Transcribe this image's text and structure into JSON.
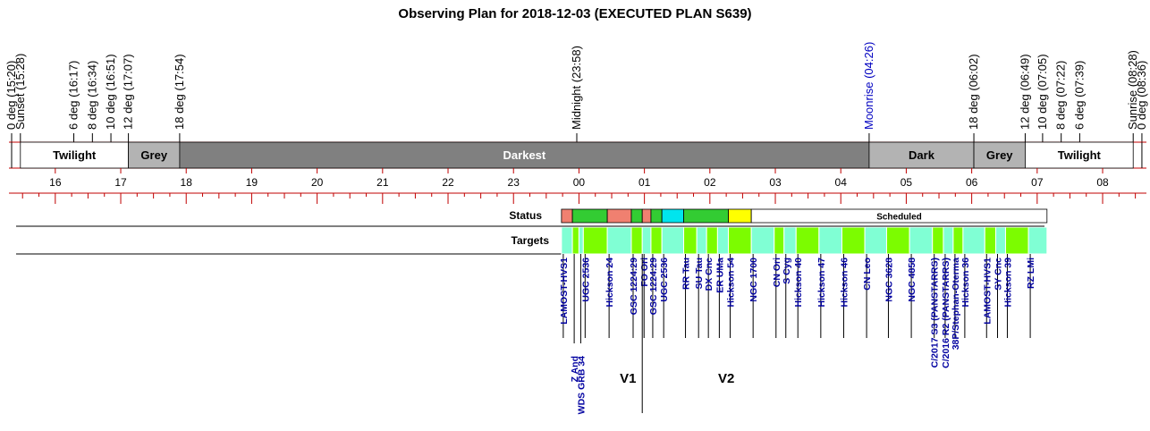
{
  "title": "Observing Plan for 2018-12-03 (EXECUTED PLAN S639)",
  "colors": {
    "red_line": "#c00000",
    "grey_band": "#b3b3b3",
    "darkest_band": "#808080",
    "status_red": "#f08070",
    "status_green": "#33cc33",
    "status_cyan": "#00e5ee",
    "status_yellow": "#ffff00",
    "target_aqua": "#80ffd4",
    "target_lime": "#7cfc00",
    "label_blue": "#0000a0",
    "moonrise_blue": "#0000c0"
  },
  "events": [
    {
      "label": "0 deg (15:20)",
      "time": 15.333
    },
    {
      "label": "Sunset (15:28)",
      "time": 15.467
    },
    {
      "label": "6 deg (16:17)",
      "time": 16.283
    },
    {
      "label": "8 deg (16:34)",
      "time": 16.567
    },
    {
      "label": "10 deg (16:51)",
      "time": 16.85
    },
    {
      "label": "12 deg (17:07)",
      "time": 17.117
    },
    {
      "label": "18 deg (17:54)",
      "time": 17.9
    },
    {
      "label": "Midnight (23:58)",
      "time": 23.967
    },
    {
      "label": "Moonrise (04:26)",
      "time": 28.433,
      "moon": true
    },
    {
      "label": "18 deg (06:02)",
      "time": 30.033
    },
    {
      "label": "12 deg (06:49)",
      "time": 30.817
    },
    {
      "label": "10 deg (07:05)",
      "time": 31.083
    },
    {
      "label": "8 deg (07:22)",
      "time": 31.367
    },
    {
      "label": "6 deg (07:39)",
      "time": 31.65
    },
    {
      "label": "Sunrise (08:28)",
      "time": 32.467
    },
    {
      "label": "0 deg (08:36)",
      "time": 32.6
    }
  ],
  "bands": [
    {
      "label": "Twilight",
      "start": 15.467,
      "end": 17.117,
      "shade": "white"
    },
    {
      "label": "Grey",
      "start": 17.117,
      "end": 17.9,
      "shade": "grey"
    },
    {
      "label": "Darkest",
      "start": 17.9,
      "end": 28.433,
      "shade": "darkest"
    },
    {
      "label": "Dark",
      "start": 28.433,
      "end": 30.033,
      "shade": "grey"
    },
    {
      "label": "Grey",
      "start": 30.033,
      "end": 30.817,
      "shade": "grey"
    },
    {
      "label": "Twilight",
      "start": 30.817,
      "end": 32.467,
      "shade": "white"
    }
  ],
  "hour_ticks": [
    "16",
    "17",
    "18",
    "19",
    "20",
    "21",
    "22",
    "23",
    "00",
    "01",
    "02",
    "03",
    "04",
    "05",
    "06",
    "07",
    "08"
  ],
  "row_labels": {
    "status": "Status",
    "targets": "Targets"
  },
  "status_blocks": [
    {
      "start": 23.733,
      "end": 23.9,
      "color": "red"
    },
    {
      "start": 23.9,
      "end": 24.433,
      "color": "green"
    },
    {
      "start": 24.433,
      "end": 24.8,
      "color": "red"
    },
    {
      "start": 24.8,
      "end": 24.967,
      "color": "green"
    },
    {
      "start": 24.967,
      "end": 25.1,
      "color": "red"
    },
    {
      "start": 25.1,
      "end": 25.267,
      "color": "green"
    },
    {
      "start": 25.267,
      "end": 25.6,
      "color": "cyan"
    },
    {
      "start": 25.6,
      "end": 26.283,
      "color": "green"
    },
    {
      "start": 26.283,
      "end": 26.633,
      "color": "yellow"
    },
    {
      "start": 26.633,
      "end": 31.15,
      "color": "white",
      "label": "Scheduled"
    }
  ],
  "targets": [
    {
      "name": "LAMOST-HVS1",
      "start": 23.733,
      "end": 23.9,
      "color": "aqua"
    },
    {
      "name": "Z And",
      "start": 23.9,
      "end": 24.0,
      "color": "lime"
    },
    {
      "name": "WDS GRB 34",
      "start": 24.0,
      "end": 24.067,
      "color": "aqua"
    },
    {
      "name": "UGC 2536",
      "start": 24.067,
      "end": 24.433,
      "color": "lime"
    },
    {
      "name": "Hickson 24",
      "start": 24.433,
      "end": 24.8,
      "color": "aqua"
    },
    {
      "name": "GSC 1224:29",
      "start": 24.8,
      "end": 24.967,
      "color": "lime"
    },
    {
      "name": "FO Ori",
      "start": 24.967,
      "end": 25.1,
      "color": "aqua"
    },
    {
      "name": "GSC 1224:29",
      "start": 25.1,
      "end": 25.267,
      "color": "lime"
    },
    {
      "name": "UGC 2536",
      "start": 25.267,
      "end": 25.6,
      "color": "aqua"
    },
    {
      "name": "RR Tau",
      "start": 25.6,
      "end": 25.8,
      "color": "lime"
    },
    {
      "name": "SU Tau",
      "start": 25.8,
      "end": 25.95,
      "color": "aqua"
    },
    {
      "name": "DX Cnc",
      "start": 25.95,
      "end": 26.117,
      "color": "lime"
    },
    {
      "name": "ER UMa",
      "start": 26.117,
      "end": 26.283,
      "color": "aqua"
    },
    {
      "name": "Hickson 54",
      "start": 26.283,
      "end": 26.633,
      "color": "lime"
    },
    {
      "name": "NGC 1700",
      "start": 26.633,
      "end": 26.983,
      "color": "aqua"
    },
    {
      "name": "CN Ori",
      "start": 26.983,
      "end": 27.133,
      "color": "lime"
    },
    {
      "name": "S Cyg",
      "start": 27.133,
      "end": 27.317,
      "color": "aqua"
    },
    {
      "name": "Hickson 40",
      "start": 27.317,
      "end": 27.667,
      "color": "lime"
    },
    {
      "name": "Hickson 47",
      "start": 27.667,
      "end": 28.017,
      "color": "aqua"
    },
    {
      "name": "Hickson 46",
      "start": 28.017,
      "end": 28.367,
      "color": "lime"
    },
    {
      "name": "CN Leo",
      "start": 28.367,
      "end": 28.7,
      "color": "aqua"
    },
    {
      "name": "NGC 3628",
      "start": 28.7,
      "end": 29.05,
      "color": "lime"
    },
    {
      "name": "NGC 4858",
      "start": 29.05,
      "end": 29.4,
      "color": "aqua"
    },
    {
      "name": "C/2017 S3 (PANSTARRS)",
      "start": 29.4,
      "end": 29.567,
      "color": "lime"
    },
    {
      "name": "C/2016 R2 (PANSTARRS)",
      "start": 29.567,
      "end": 29.717,
      "color": "aqua"
    },
    {
      "name": "38P/Stephan-Oterma",
      "start": 29.717,
      "end": 29.867,
      "color": "lime"
    },
    {
      "name": "Hickson 36",
      "start": 29.867,
      "end": 30.2,
      "color": "aqua"
    },
    {
      "name": "LAMOST-HVS1",
      "start": 30.2,
      "end": 30.367,
      "color": "lime"
    },
    {
      "name": "SY Cnc",
      "start": 30.367,
      "end": 30.517,
      "color": "aqua"
    },
    {
      "name": "Hickson 39",
      "start": 30.517,
      "end": 30.867,
      "color": "lime"
    },
    {
      "name": "RZ LMi",
      "start": 30.867,
      "end": 31.15,
      "color": "aqua"
    }
  ],
  "markers": [
    {
      "label": "V1",
      "time": 24.45
    },
    {
      "label": "V2",
      "time": 25.95
    }
  ],
  "marker_line_time": 24.967
}
